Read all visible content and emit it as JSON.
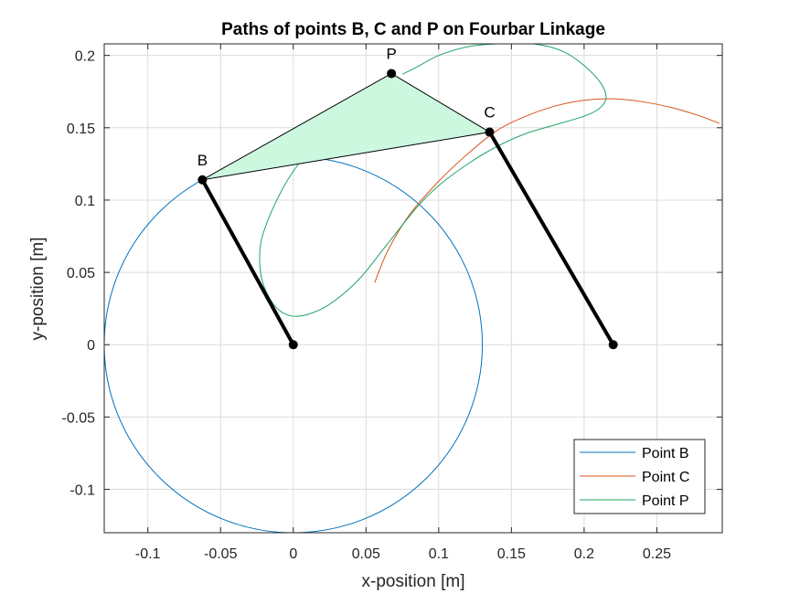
{
  "chart_data": {
    "type": "line",
    "title": "Paths of points B, C and P on Fourbar Linkage",
    "xlabel": "x-position [m]",
    "ylabel": "y-position [m]",
    "xlim": [
      -0.13,
      0.295
    ],
    "ylim": [
      -0.13,
      0.208
    ],
    "grid": true,
    "legend_position": "bottom-right",
    "xticks": [
      {
        "value": -0.1,
        "label": "-0.1"
      },
      {
        "value": -0.05,
        "label": "-0.05"
      },
      {
        "value": 0,
        "label": "0"
      },
      {
        "value": 0.05,
        "label": "0.05"
      },
      {
        "value": 0.1,
        "label": "0.1"
      },
      {
        "value": 0.15,
        "label": "0.15"
      },
      {
        "value": 0.2,
        "label": "0.2"
      },
      {
        "value": 0.25,
        "label": "0.25"
      }
    ],
    "yticks": [
      {
        "value": 0.2,
        "label": "0.2"
      },
      {
        "value": 0.15,
        "label": "0.15"
      },
      {
        "value": 0.1,
        "label": "0.1"
      },
      {
        "value": 0.05,
        "label": "0.05"
      },
      {
        "value": 0,
        "label": "0"
      },
      {
        "value": -0.05,
        "label": "-0.05"
      },
      {
        "value": -0.1,
        "label": "-0.1"
      }
    ],
    "series": [
      {
        "name": "Point B",
        "color": "#0072BD",
        "center": [
          0,
          0
        ],
        "radius": 0.13,
        "points": [
          [
            -0.13,
            0
          ],
          [
            -0.1226,
            0.0432
          ],
          [
            -0.1017,
            0.081
          ],
          [
            -0.0693,
            0.11
          ],
          [
            -0.0232,
            0.1279
          ],
          [
            0.0232,
            0.1279
          ],
          [
            0.0693,
            0.11
          ],
          [
            0.1017,
            0.081
          ],
          [
            0.1226,
            0.0432
          ],
          [
            0.13,
            0
          ],
          [
            0.1226,
            -0.0432
          ],
          [
            0.1017,
            -0.081
          ],
          [
            0.0693,
            -0.11
          ],
          [
            0.0232,
            -0.1279
          ],
          [
            -0.0232,
            -0.1279
          ],
          [
            -0.0693,
            -0.11
          ],
          [
            -0.1017,
            -0.081
          ],
          [
            -0.1226,
            -0.0432
          ],
          [
            -0.13,
            0
          ]
        ]
      },
      {
        "name": "Point C",
        "color": "#D95319",
        "points": [
          [
            0.056,
            0.043
          ],
          [
            0.065,
            0.065
          ],
          [
            0.08,
            0.09
          ],
          [
            0.1,
            0.113
          ],
          [
            0.12,
            0.132
          ],
          [
            0.14,
            0.148
          ],
          [
            0.16,
            0.158
          ],
          [
            0.18,
            0.165
          ],
          [
            0.2,
            0.169
          ],
          [
            0.22,
            0.17
          ],
          [
            0.24,
            0.168
          ],
          [
            0.26,
            0.164
          ],
          [
            0.28,
            0.158
          ],
          [
            0.293,
            0.153
          ]
        ]
      },
      {
        "name": "Point P",
        "color": "#21A366",
        "points": [
          [
            0.005,
            0.127
          ],
          [
            -0.005,
            0.112
          ],
          [
            -0.015,
            0.092
          ],
          [
            -0.022,
            0.072
          ],
          [
            -0.023,
            0.055
          ],
          [
            -0.02,
            0.04
          ],
          [
            -0.012,
            0.026
          ],
          [
            -0.002,
            0.02
          ],
          [
            0.01,
            0.021
          ],
          [
            0.025,
            0.028
          ],
          [
            0.045,
            0.045
          ],
          [
            0.065,
            0.07
          ],
          [
            0.085,
            0.095
          ],
          [
            0.1,
            0.11
          ],
          [
            0.12,
            0.125
          ],
          [
            0.14,
            0.137
          ],
          [
            0.16,
            0.146
          ],
          [
            0.18,
            0.152
          ],
          [
            0.2,
            0.158
          ],
          [
            0.21,
            0.163
          ],
          [
            0.215,
            0.17
          ],
          [
            0.212,
            0.18
          ],
          [
            0.2,
            0.193
          ],
          [
            0.185,
            0.203
          ],
          [
            0.165,
            0.208
          ],
          [
            0.14,
            0.208
          ],
          [
            0.12,
            0.206
          ],
          [
            0.1,
            0.2
          ],
          [
            0.085,
            0.192
          ],
          [
            0.075,
            0.187
          ]
        ]
      }
    ],
    "linkage": {
      "points": [
        {
          "name": "A",
          "label": "",
          "x": 0,
          "y": 0
        },
        {
          "name": "B",
          "label": "B",
          "x": -0.0625,
          "y": 0.114
        },
        {
          "name": "C",
          "label": "C",
          "x": 0.135,
          "y": 0.147
        },
        {
          "name": "D",
          "label": "",
          "x": 0.22,
          "y": 0
        },
        {
          "name": "P",
          "label": "P",
          "x": 0.0675,
          "y": 0.1875
        }
      ],
      "coupler_fill": "#CCF8E0",
      "link_color": "#000000"
    }
  }
}
